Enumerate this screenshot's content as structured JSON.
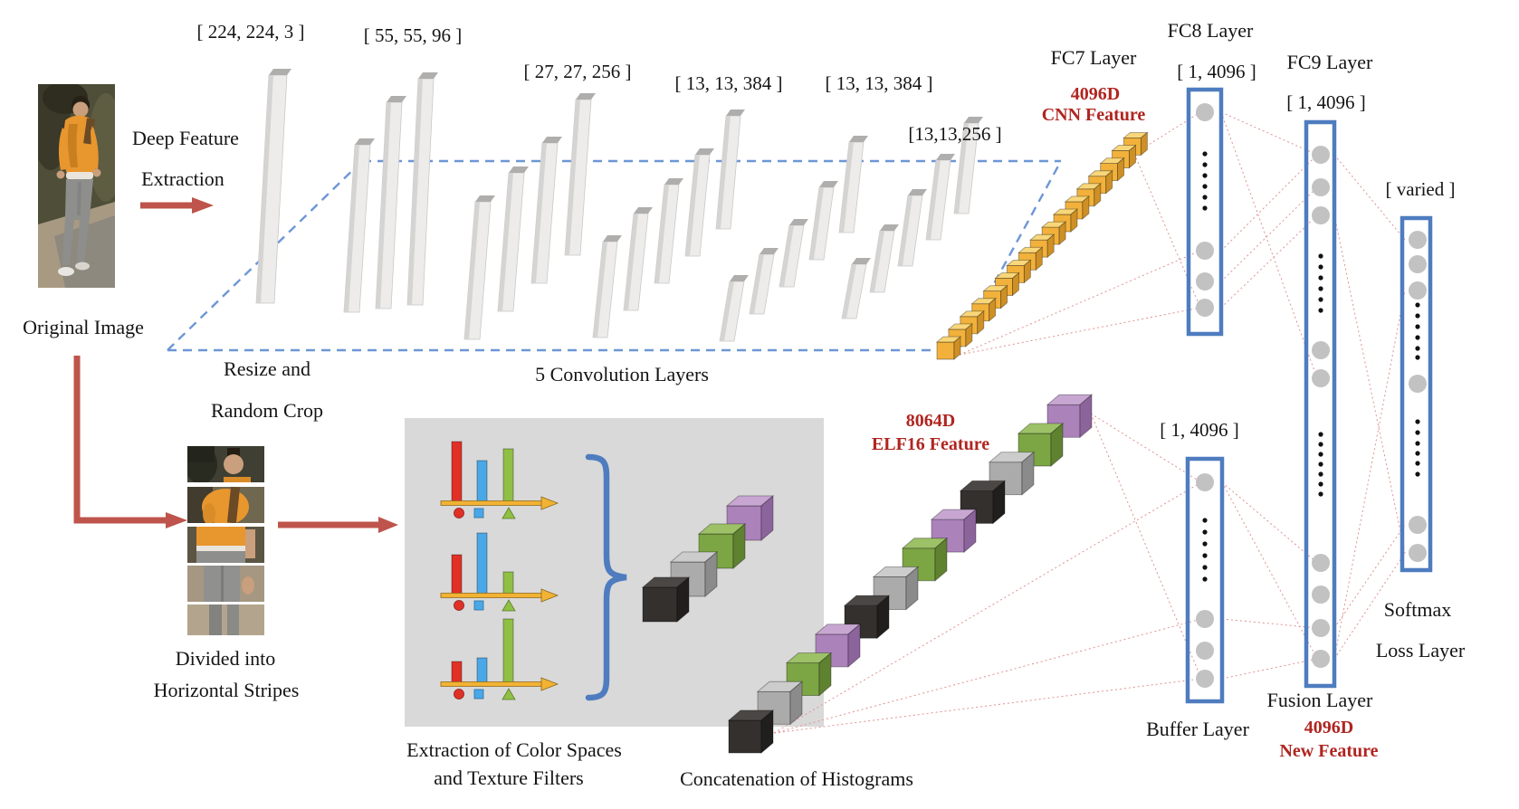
{
  "cnn_branch": {
    "input_label": "[ 224, 224, 3 ]",
    "conv_labels": [
      "[ 55, 55, 96 ]",
      "[ 27, 27, 256 ]",
      "[ 13, 13, 384 ]",
      "[ 13, 13, 384 ]",
      "[13,13,256 ]"
    ],
    "deep_feature_line1": "Deep Feature",
    "deep_feature_line2": "Extraction",
    "resize_line1": "Resize and",
    "resize_line2": "Random Crop",
    "conv_section_label": "5 Convolution Layers",
    "fc7_label": "FC7 Layer",
    "cnn_feature_line1": "4096D",
    "cnn_feature_line2": "CNN Feature",
    "fc8_label": "FC8 Layer",
    "fc8_dim": "[ 1, 4096 ]",
    "fc9_label": "FC9 Layer",
    "fc9_dim": "[ 1, 4096 ]"
  },
  "elf_branch": {
    "original_image_label": "Original Image",
    "divided_line1": "Divided into",
    "divided_line2": "Horizontal Stripes",
    "extraction_line1": "Extraction of Color Spaces",
    "extraction_line2": "and Texture Filters",
    "concat_label": "Concatenation of Histograms",
    "elf_feature_line1": "8064D",
    "elf_feature_line2": "ELF16 Feature",
    "buffer_dim": "[ 1, 4096 ]",
    "buffer_label": "Buffer Layer"
  },
  "fusion": {
    "fusion_label": "Fusion Layer",
    "new_feature_line1": "4096D",
    "new_feature_line2": "New Feature",
    "varied_dim": "[ varied ]",
    "softmax_line1": "Softmax",
    "softmax_line2": "Loss Layer"
  },
  "colors": {
    "accent_red_text": "#B02520",
    "arrow_red": "#BE544B",
    "layer_box_blue": "#4E7CBF",
    "dashed_blue": "#6D96D5",
    "node_gray": "#C2C2C2",
    "panel_gray": "#D9D9D9",
    "connector_pink": "#E09390",
    "cnn_cube_yellow": "#F1B13B",
    "elf_cube_colors": [
      "#33302E",
      "#ABABAB",
      "#7CA544",
      "#AC82BB"
    ],
    "hist_bar_colors": [
      "#E03127",
      "#4AA8E8",
      "#8FC045"
    ],
    "hist_axis_yellow": "#F2B233"
  },
  "figure": {
    "cnn_cube_count": 17,
    "elf_cube_count": 12,
    "panel_cube_count": 4,
    "histograms": [
      {
        "bars": [
          67,
          46,
          59
        ]
      },
      {
        "bars": [
          44,
          68,
          25
        ]
      },
      {
        "bars": [
          24,
          28,
          71
        ]
      }
    ]
  }
}
